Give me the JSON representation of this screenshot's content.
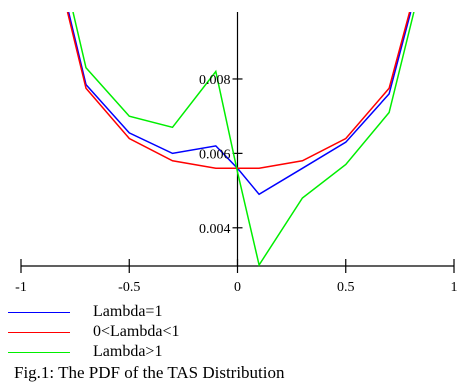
{
  "chart_data": {
    "type": "line",
    "title": "",
    "xlabel": "",
    "ylabel": "",
    "xlim": [
      -1,
      1
    ],
    "ylim": [
      0.003,
      0.0098
    ],
    "x_ticks": [
      -1,
      -0.5,
      0,
      0.5,
      1
    ],
    "x_tick_labels": [
      "-1",
      "-0.5",
      "0",
      "0.5",
      "1"
    ],
    "y_ticks": [
      0.004,
      0.006,
      0.008
    ],
    "y_tick_labels": [
      "0.004",
      "0.006",
      "0.008"
    ],
    "grid": false,
    "legend": "bottom-left",
    "series": [
      {
        "name": "Lambda=1",
        "color": "#0000ff",
        "x": [
          -0.78,
          -0.7,
          -0.5,
          -0.3,
          -0.1,
          0,
          0.1,
          0.3,
          0.5,
          0.7,
          0.8
        ],
        "y": [
          0.0098,
          0.00785,
          0.00655,
          0.006,
          0.0062,
          0.0056,
          0.0049,
          0.0056,
          0.0063,
          0.0076,
          0.0098
        ]
      },
      {
        "name": "0<Lambda<1",
        "color": "#ff0000",
        "x": [
          -0.785,
          -0.7,
          -0.5,
          -0.3,
          -0.1,
          0,
          0.1,
          0.3,
          0.5,
          0.7,
          0.795
        ],
        "y": [
          0.0098,
          0.00775,
          0.0064,
          0.0058,
          0.0056,
          0.0056,
          0.0056,
          0.0058,
          0.0064,
          0.00775,
          0.0098
        ]
      },
      {
        "name": "Lambda>1",
        "color": "#00ee00",
        "x": [
          -0.76,
          -0.7,
          -0.5,
          -0.3,
          -0.1,
          0,
          0.1,
          0.3,
          0.5,
          0.7,
          0.815
        ],
        "y": [
          0.0098,
          0.0083,
          0.007,
          0.0067,
          0.0082,
          0.0055,
          0.003,
          0.0048,
          0.0057,
          0.0071,
          0.0098
        ]
      }
    ]
  },
  "caption": "Fig.1: The PDF of the TAS Distribution"
}
